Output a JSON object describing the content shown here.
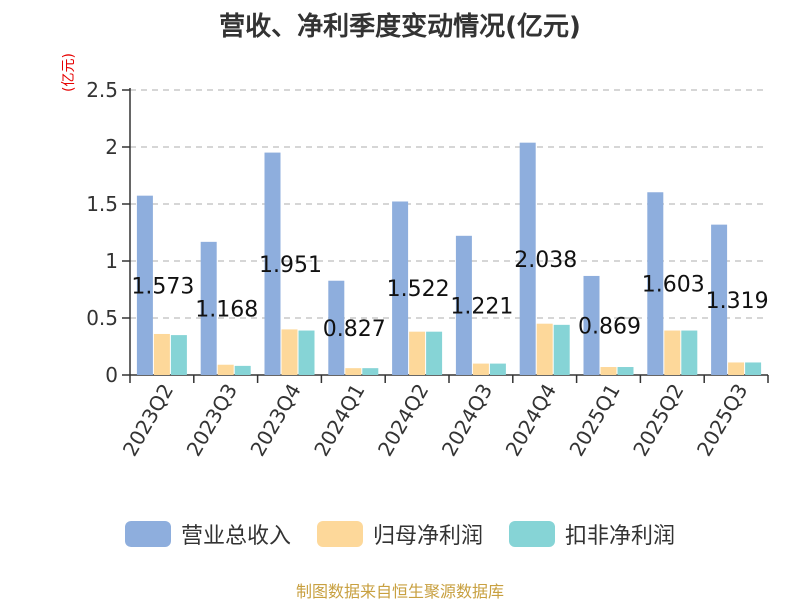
{
  "header": {
    "title": "营收、净利季度变动情况(亿元)"
  },
  "unit_label": "(亿元)",
  "source": "制图数据来自恒生聚源数据库",
  "colors": {
    "revenue": "#8eaedd",
    "parent_net_profit": "#fdd89a",
    "deducted_net_profit": "#86d4d6"
  },
  "chart_data": {
    "type": "bar",
    "title": "营收、净利季度变动情况(亿元)",
    "ylabel": "(亿元)",
    "xlabel": "",
    "ylim": [
      0,
      2.5
    ],
    "yticks": [
      "0",
      "0.5",
      "1",
      "1.5",
      "2",
      "2.5"
    ],
    "grid": true,
    "legend_position": "bottom",
    "categories": [
      "2023Q2",
      "2023Q3",
      "2023Q4",
      "2024Q1",
      "2024Q2",
      "2024Q3",
      "2024Q4",
      "2025Q1",
      "2025Q2",
      "2025Q3"
    ],
    "series": [
      {
        "name": "营业总收入",
        "values": [
          1.573,
          1.168,
          1.951,
          0.827,
          1.522,
          1.221,
          2.038,
          0.869,
          1.603,
          1.319
        ],
        "labels": [
          "1.573",
          "1.168",
          "1.951",
          "0.827",
          "1.522",
          "1.221",
          "2.038",
          "0.869",
          "1.603",
          "1.319"
        ]
      },
      {
        "name": "归母净利润",
        "values": [
          0.36,
          0.09,
          0.4,
          0.06,
          0.38,
          0.1,
          0.45,
          0.07,
          0.39,
          0.11
        ]
      },
      {
        "name": "扣非净利润",
        "values": [
          0.35,
          0.08,
          0.39,
          0.06,
          0.38,
          0.1,
          0.44,
          0.07,
          0.39,
          0.11
        ]
      }
    ]
  }
}
